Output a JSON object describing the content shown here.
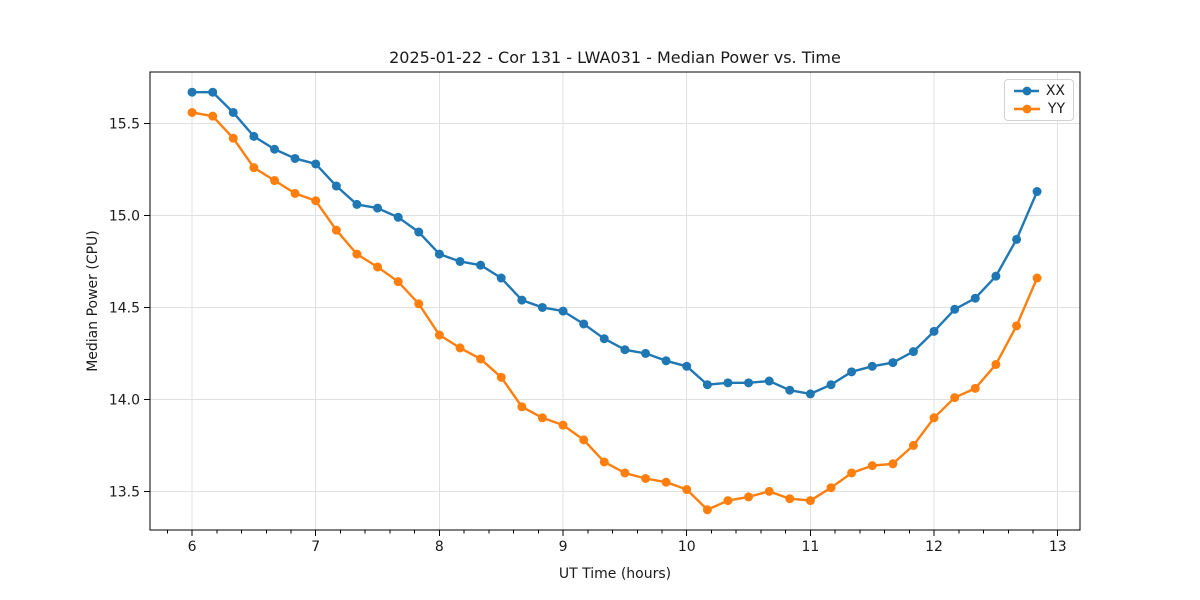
{
  "figure_background": "#ffffff",
  "chart_data": {
    "type": "line",
    "title": "2025-01-22 - Cor 131 - LWA031 - Median Power vs. Time",
    "xlabel": "UT Time (hours)",
    "ylabel": "Median Power (CPU)",
    "xlim": [
      5.66,
      13.18
    ],
    "ylim": [
      13.29,
      15.78
    ],
    "x_ticks": [
      6,
      7,
      8,
      9,
      10,
      11,
      12,
      13
    ],
    "x_minor_tick_step": 0.2,
    "y_ticks": [
      13.5,
      14.0,
      14.5,
      15.0,
      15.5
    ],
    "grid": true,
    "grid_color": "#e0e0e0",
    "spine_color": "#000000",
    "legend_position": "upper right",
    "marker": "circle",
    "x": [
      6.0,
      6.167,
      6.333,
      6.5,
      6.667,
      6.833,
      7.0,
      7.167,
      7.333,
      7.5,
      7.667,
      7.833,
      8.0,
      8.167,
      8.333,
      8.5,
      8.667,
      8.833,
      9.0,
      9.167,
      9.333,
      9.5,
      9.667,
      9.833,
      10.0,
      10.167,
      10.333,
      10.5,
      10.667,
      10.833,
      11.0,
      11.167,
      11.333,
      11.5,
      11.667,
      11.833,
      12.0,
      12.167,
      12.333,
      12.5,
      12.667,
      12.833
    ],
    "series": [
      {
        "name": "XX",
        "color": "#1f77b4",
        "values": [
          15.67,
          15.67,
          15.56,
          15.43,
          15.36,
          15.31,
          15.28,
          15.16,
          15.06,
          15.04,
          14.99,
          14.91,
          14.79,
          14.75,
          14.73,
          14.66,
          14.54,
          14.5,
          14.48,
          14.41,
          14.33,
          14.27,
          14.25,
          14.21,
          14.18,
          14.08,
          14.09,
          14.09,
          14.1,
          14.05,
          14.03,
          14.08,
          14.15,
          14.18,
          14.2,
          14.26,
          14.37,
          14.49,
          14.55,
          14.67,
          14.87,
          15.13
        ]
      },
      {
        "name": "YY",
        "color": "#ff7f0e",
        "values": [
          15.56,
          15.54,
          15.42,
          15.26,
          15.19,
          15.12,
          15.08,
          14.92,
          14.79,
          14.72,
          14.64,
          14.52,
          14.35,
          14.28,
          14.22,
          14.12,
          13.96,
          13.9,
          13.86,
          13.78,
          13.66,
          13.6,
          13.57,
          13.55,
          13.51,
          13.4,
          13.45,
          13.47,
          13.5,
          13.46,
          13.45,
          13.52,
          13.6,
          13.64,
          13.65,
          13.75,
          13.9,
          14.01,
          14.06,
          14.19,
          14.4,
          14.66
        ]
      }
    ]
  }
}
